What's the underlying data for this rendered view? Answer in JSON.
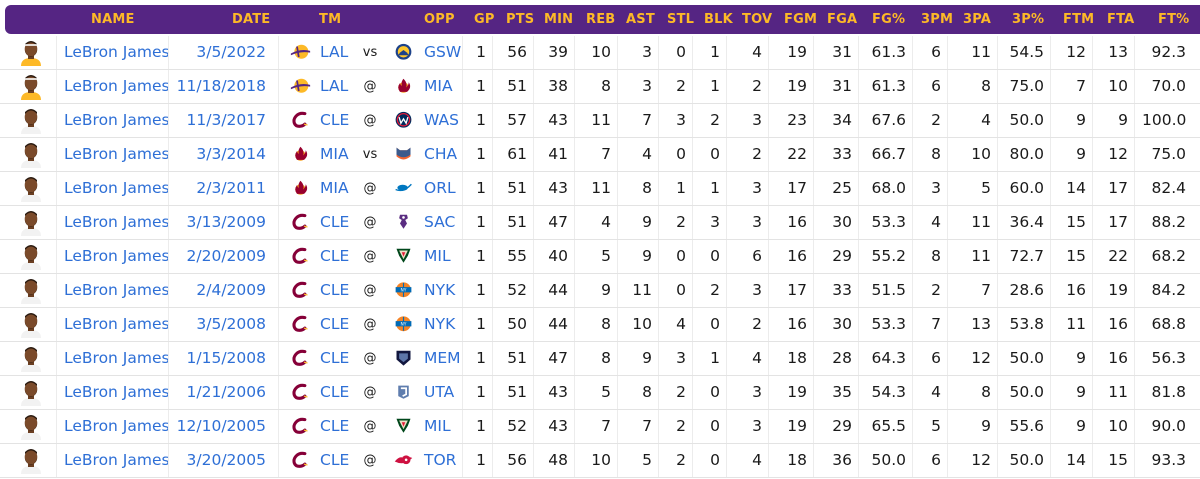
{
  "columns": {
    "name": "NAME",
    "date": "DATE",
    "tm": "TM",
    "opp": "OPP",
    "gp": "GP",
    "pts": "PTS",
    "min": "MIN",
    "reb": "REB",
    "ast": "AST",
    "stl": "STL",
    "blk": "BLK",
    "tov": "TOV",
    "fgm": "FGM",
    "fga": "FGA",
    "fgp": "FG%",
    "tpm": "3PM",
    "tpa": "3PA",
    "tpp": "3P%",
    "ftm": "FTM",
    "fta": "FTA",
    "ftp": "FT%"
  },
  "colors": {
    "header_bg": "#552583",
    "header_text": "#FDB927",
    "link": "#2e6fd6",
    "LAL": "#552583",
    "CLE": "#860038",
    "MIA": "#98002E",
    "GSW": "#1D428A",
    "WAS": "#002B5C",
    "CHA": "#1D1160",
    "ORL": "#0077C0",
    "SAC": "#5A2D81",
    "MIL": "#00471B",
    "NYK": "#F58426",
    "MEM": "#5D76A9",
    "UTA": "#002B5C",
    "TOR": "#CE1141"
  },
  "rows": [
    {
      "name": "LeBron James",
      "date": "3/5/2022",
      "tm": "LAL",
      "loc": "vs",
      "opp": "GSW",
      "gp": "1",
      "pts": "56",
      "min": "39",
      "reb": "10",
      "ast": "3",
      "stl": "0",
      "blk": "1",
      "tov": "4",
      "fgm": "19",
      "fga": "31",
      "fgp": "61.3",
      "tpm": "6",
      "tpa": "11",
      "tpp": "54.5",
      "ftm": "12",
      "fta": "13",
      "ftp": "92.3",
      "tm_icon": "lakers-logo-icon",
      "opp_icon": "warriors-logo-icon"
    },
    {
      "name": "LeBron James",
      "date": "11/18/2018",
      "tm": "LAL",
      "loc": "@",
      "opp": "MIA",
      "gp": "1",
      "pts": "51",
      "min": "38",
      "reb": "8",
      "ast": "3",
      "stl": "2",
      "blk": "1",
      "tov": "2",
      "fgm": "19",
      "fga": "31",
      "fgp": "61.3",
      "tpm": "6",
      "tpa": "8",
      "tpp": "75.0",
      "ftm": "7",
      "fta": "10",
      "ftp": "70.0",
      "tm_icon": "lakers-logo-icon",
      "opp_icon": "heat-logo-icon"
    },
    {
      "name": "LeBron James",
      "date": "11/3/2017",
      "tm": "CLE",
      "loc": "@",
      "opp": "WAS",
      "gp": "1",
      "pts": "57",
      "min": "43",
      "reb": "11",
      "ast": "7",
      "stl": "3",
      "blk": "2",
      "tov": "3",
      "fgm": "23",
      "fga": "34",
      "fgp": "67.6",
      "tpm": "2",
      "tpa": "4",
      "tpp": "50.0",
      "ftm": "9",
      "fta": "9",
      "ftp": "100.0",
      "tm_icon": "cavaliers-logo-icon",
      "opp_icon": "wizards-logo-icon"
    },
    {
      "name": "LeBron James",
      "date": "3/3/2014",
      "tm": "MIA",
      "loc": "vs",
      "opp": "CHA",
      "gp": "1",
      "pts": "61",
      "min": "41",
      "reb": "7",
      "ast": "4",
      "stl": "0",
      "blk": "0",
      "tov": "2",
      "fgm": "22",
      "fga": "33",
      "fgp": "66.7",
      "tpm": "8",
      "tpa": "10",
      "tpp": "80.0",
      "ftm": "9",
      "fta": "12",
      "ftp": "75.0",
      "tm_icon": "heat-logo-icon",
      "opp_icon": "bobcats-logo-icon"
    },
    {
      "name": "LeBron James",
      "date": "2/3/2011",
      "tm": "MIA",
      "loc": "@",
      "opp": "ORL",
      "gp": "1",
      "pts": "51",
      "min": "43",
      "reb": "11",
      "ast": "8",
      "stl": "1",
      "blk": "1",
      "tov": "3",
      "fgm": "17",
      "fga": "25",
      "fgp": "68.0",
      "tpm": "3",
      "tpa": "5",
      "tpp": "60.0",
      "ftm": "14",
      "fta": "17",
      "ftp": "82.4",
      "tm_icon": "heat-logo-icon",
      "opp_icon": "magic-logo-icon"
    },
    {
      "name": "LeBron James",
      "date": "3/13/2009",
      "tm": "CLE",
      "loc": "@",
      "opp": "SAC",
      "gp": "1",
      "pts": "51",
      "min": "47",
      "reb": "4",
      "ast": "9",
      "stl": "2",
      "blk": "3",
      "tov": "3",
      "fgm": "16",
      "fga": "30",
      "fgp": "53.3",
      "tpm": "4",
      "tpa": "11",
      "tpp": "36.4",
      "ftm": "15",
      "fta": "17",
      "ftp": "88.2",
      "tm_icon": "cavaliers-logo-icon",
      "opp_icon": "kings-logo-icon"
    },
    {
      "name": "LeBron James",
      "date": "2/20/2009",
      "tm": "CLE",
      "loc": "@",
      "opp": "MIL",
      "gp": "1",
      "pts": "55",
      "min": "40",
      "reb": "5",
      "ast": "9",
      "stl": "0",
      "blk": "0",
      "tov": "6",
      "fgm": "16",
      "fga": "29",
      "fgp": "55.2",
      "tpm": "8",
      "tpa": "11",
      "tpp": "72.7",
      "ftm": "15",
      "fta": "22",
      "ftp": "68.2",
      "tm_icon": "cavaliers-logo-icon",
      "opp_icon": "bucks-logo-icon"
    },
    {
      "name": "LeBron James",
      "date": "2/4/2009",
      "tm": "CLE",
      "loc": "@",
      "opp": "NYK",
      "gp": "1",
      "pts": "52",
      "min": "44",
      "reb": "9",
      "ast": "11",
      "stl": "0",
      "blk": "2",
      "tov": "3",
      "fgm": "17",
      "fga": "33",
      "fgp": "51.5",
      "tpm": "2",
      "tpa": "7",
      "tpp": "28.6",
      "ftm": "16",
      "fta": "19",
      "ftp": "84.2",
      "tm_icon": "cavaliers-logo-icon",
      "opp_icon": "knicks-logo-icon"
    },
    {
      "name": "LeBron James",
      "date": "3/5/2008",
      "tm": "CLE",
      "loc": "@",
      "opp": "NYK",
      "gp": "1",
      "pts": "50",
      "min": "44",
      "reb": "8",
      "ast": "10",
      "stl": "4",
      "blk": "0",
      "tov": "2",
      "fgm": "16",
      "fga": "30",
      "fgp": "53.3",
      "tpm": "7",
      "tpa": "13",
      "tpp": "53.8",
      "ftm": "11",
      "fta": "16",
      "ftp": "68.8",
      "tm_icon": "cavaliers-logo-icon",
      "opp_icon": "knicks-logo-icon"
    },
    {
      "name": "LeBron James",
      "date": "1/15/2008",
      "tm": "CLE",
      "loc": "@",
      "opp": "MEM",
      "gp": "1",
      "pts": "51",
      "min": "47",
      "reb": "8",
      "ast": "9",
      "stl": "3",
      "blk": "1",
      "tov": "4",
      "fgm": "18",
      "fga": "28",
      "fgp": "64.3",
      "tpm": "6",
      "tpa": "12",
      "tpp": "50.0",
      "ftm": "9",
      "fta": "16",
      "ftp": "56.3",
      "tm_icon": "cavaliers-logo-icon",
      "opp_icon": "grizzlies-logo-icon"
    },
    {
      "name": "LeBron James",
      "date": "1/21/2006",
      "tm": "CLE",
      "loc": "@",
      "opp": "UTA",
      "gp": "1",
      "pts": "51",
      "min": "43",
      "reb": "5",
      "ast": "8",
      "stl": "2",
      "blk": "0",
      "tov": "3",
      "fgm": "19",
      "fga": "35",
      "fgp": "54.3",
      "tpm": "4",
      "tpa": "8",
      "tpp": "50.0",
      "ftm": "9",
      "fta": "11",
      "ftp": "81.8",
      "tm_icon": "cavaliers-logo-icon",
      "opp_icon": "jazz-logo-icon"
    },
    {
      "name": "LeBron James",
      "date": "12/10/2005",
      "tm": "CLE",
      "loc": "@",
      "opp": "MIL",
      "gp": "1",
      "pts": "52",
      "min": "43",
      "reb": "7",
      "ast": "7",
      "stl": "2",
      "blk": "0",
      "tov": "3",
      "fgm": "19",
      "fga": "29",
      "fgp": "65.5",
      "tpm": "5",
      "tpa": "9",
      "tpp": "55.6",
      "ftm": "9",
      "fta": "10",
      "ftp": "90.0",
      "tm_icon": "cavaliers-logo-icon",
      "opp_icon": "bucks-logo-icon"
    },
    {
      "name": "LeBron James",
      "date": "3/20/2005",
      "tm": "CLE",
      "loc": "@",
      "opp": "TOR",
      "gp": "1",
      "pts": "56",
      "min": "48",
      "reb": "10",
      "ast": "5",
      "stl": "2",
      "blk": "0",
      "tov": "4",
      "fgm": "18",
      "fga": "36",
      "fgp": "50.0",
      "tpm": "6",
      "tpa": "12",
      "tpp": "50.0",
      "ftm": "14",
      "fta": "15",
      "ftp": "93.3",
      "tm_icon": "cavaliers-logo-icon",
      "opp_icon": "raptors-logo-icon"
    }
  ]
}
